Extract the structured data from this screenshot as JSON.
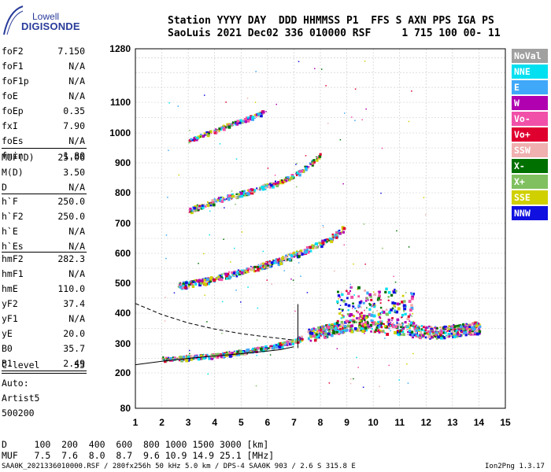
{
  "logo": {
    "line1": "Lowell",
    "line2": "DIGISONDE"
  },
  "header": {
    "line1": "Station YYYY DAY  DDD HHMMSS P1  FFS S AXN PPS IGA PS",
    "line2": "SaoLuis 2021 Dec02 336 010000 RSF     1 715 100 00- 11"
  },
  "parameters_group1": [
    {
      "name": "foF2",
      "value": "7.150"
    },
    {
      "name": "foF1",
      "value": "N/A"
    },
    {
      "name": "foF1p",
      "value": "N/A"
    },
    {
      "name": "foE",
      "value": "N/A"
    },
    {
      "name": "foEp",
      "value": "0.35"
    },
    {
      "name": "fxI",
      "value": "7.90"
    },
    {
      "name": "foEs",
      "value": "N/A"
    },
    {
      "name": "fmin",
      "value": "1.80"
    }
  ],
  "parameters_group2": [
    {
      "name": "MUF(D)",
      "value": "25.06"
    },
    {
      "name": "M(D)",
      "value": "3.50"
    },
    {
      "name": "D",
      "value": "N/A"
    }
  ],
  "parameters_group3": [
    {
      "name": "h`F",
      "value": "250.0"
    },
    {
      "name": "h`F2",
      "value": "250.0"
    },
    {
      "name": "h`E",
      "value": "N/A"
    },
    {
      "name": "h`Es",
      "value": "N/A"
    }
  ],
  "parameters_group4": [
    {
      "name": "hmF2",
      "value": "282.3"
    },
    {
      "name": "hmF1",
      "value": "N/A"
    },
    {
      "name": "hmE",
      "value": "110.0"
    },
    {
      "name": "yF2",
      "value": "37.4"
    },
    {
      "name": "yF1",
      "value": "N/A"
    },
    {
      "name": "yE",
      "value": "20.0"
    },
    {
      "name": "B0",
      "value": "35.7"
    },
    {
      "name": "B1",
      "value": "2.49"
    }
  ],
  "c_level": {
    "name": "C-level",
    "value": "55"
  },
  "autoscaling": {
    "line1": "Auto:",
    "line2": "Artist5",
    "line3": "500200"
  },
  "legend": [
    {
      "label": "NoVal",
      "color": "#a0a0a0"
    },
    {
      "label": "NNE",
      "color": "#00e0f0"
    },
    {
      "label": "E",
      "color": "#40a8f8"
    },
    {
      "label": "W",
      "color": "#b000b0"
    },
    {
      "label": "Vo-",
      "color": "#f050a8"
    },
    {
      "label": "Vo+",
      "color": "#e00030"
    },
    {
      "label": "SSW",
      "color": "#f0b0b0"
    },
    {
      "label": "X-",
      "color": "#007000"
    },
    {
      "label": "X+",
      "color": "#80c060"
    },
    {
      "label": "SSE",
      "color": "#d0d000"
    },
    {
      "label": "NNW",
      "color": "#1010e0"
    }
  ],
  "bottom_table": {
    "d_row": "D     100  200  400  600  800 1000 1500 3000 [km]",
    "muf_row": "MUF   7.5  7.6  8.0  8.7  9.6 10.9 14.9 25.1 [MHz]"
  },
  "footer": {
    "left": "SAA0K_2021336010000.RSF / 280fx256h 50 kHz 5.0 km / DPS-4 SAA0K 903 / 2.6 S 315.8 E",
    "right": "Ion2Png 1.3.17"
  },
  "chart_data": {
    "type": "scatter",
    "xlim": [
      1,
      15
    ],
    "x_ticks": [
      1,
      2,
      3,
      4,
      5,
      6,
      7,
      8,
      9,
      10,
      11,
      12,
      13,
      14,
      15
    ],
    "y_ticks": [
      80,
      200,
      300,
      400,
      500,
      600,
      700,
      800,
      900,
      1000,
      1100,
      1280
    ],
    "ylim": [
      80,
      1280
    ],
    "grid": true,
    "traces": [
      {
        "name": "F-trace",
        "x": [
          2.0,
          2.5,
          3.0,
          3.5,
          4.0,
          4.5,
          5.0,
          5.5,
          6.0,
          6.5,
          7.0,
          7.3
        ],
        "y": [
          250,
          252,
          255,
          258,
          262,
          268,
          274,
          282,
          290,
          300,
          312,
          322
        ]
      },
      {
        "name": "2F-trace",
        "x": [
          2.6,
          3.0,
          3.5,
          4.0,
          4.5,
          5.0,
          5.5,
          6.0,
          6.5,
          7.0,
          7.5,
          8.0,
          8.5,
          8.9
        ],
        "y": [
          495,
          500,
          508,
          518,
          530,
          540,
          552,
          566,
          580,
          598,
          615,
          635,
          660,
          690
        ]
      },
      {
        "name": "3F-trace",
        "x": [
          3.0,
          3.5,
          4.0,
          4.5,
          5.0,
          5.5,
          6.0,
          6.5,
          7.0,
          7.5,
          8.0
        ],
        "y": [
          745,
          760,
          775,
          790,
          800,
          812,
          826,
          840,
          860,
          890,
          930
        ]
      },
      {
        "name": "4F-trace",
        "x": [
          3.0,
          3.5,
          4.0,
          4.5,
          5.0,
          5.5,
          5.8
        ],
        "y": [
          975,
          995,
          1010,
          1028,
          1042,
          1058,
          1070
        ]
      },
      {
        "name": "spread-F",
        "x": [
          7.5,
          8.0,
          8.5,
          9.0,
          9.5,
          10.0,
          10.5,
          11.0,
          11.5,
          12.0,
          12.5,
          13.0,
          13.5,
          14.0
        ],
        "y": [
          330,
          340,
          350,
          360,
          365,
          360,
          355,
          350,
          345,
          340,
          340,
          345,
          350,
          355
        ]
      }
    ],
    "profile_solid": {
      "x": [
        1.0,
        2.0,
        3.0,
        4.0,
        5.0,
        6.0,
        6.5,
        7.0
      ],
      "y": [
        228,
        240,
        250,
        258,
        266,
        275,
        280,
        290
      ]
    },
    "profile_dashed": {
      "x": [
        1.0,
        2.0,
        3.0,
        4.0,
        5.0,
        6.0,
        7.0
      ],
      "y": [
        432,
        395,
        368,
        348,
        333,
        322,
        312
      ]
    },
    "fof2_marker": {
      "x": 7.15,
      "y": [
        285,
        430
      ]
    }
  }
}
